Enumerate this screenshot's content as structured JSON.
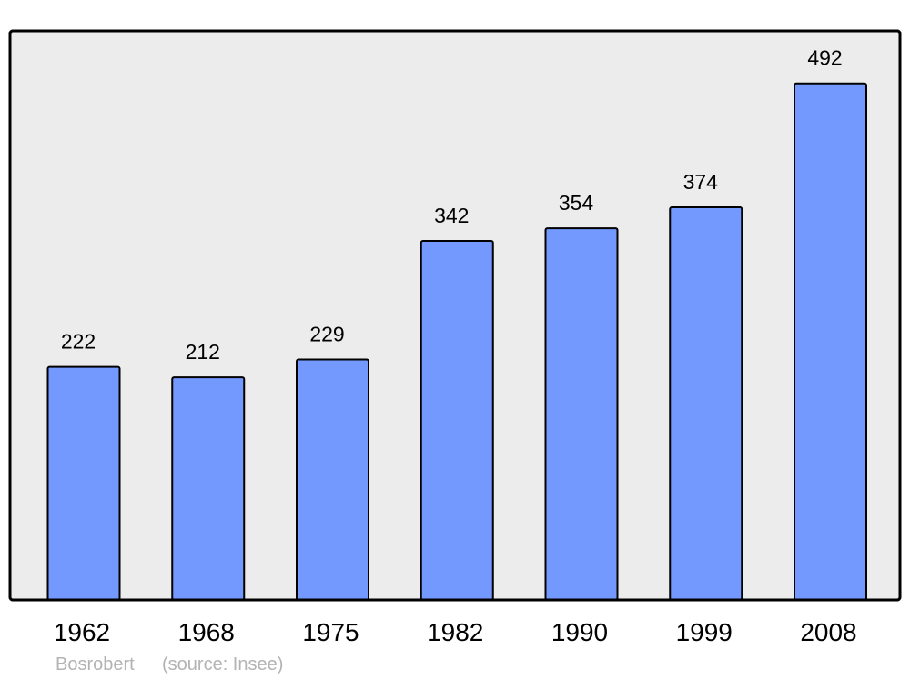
{
  "chart_data": {
    "type": "bar",
    "categories": [
      "1962",
      "1968",
      "1975",
      "1982",
      "1990",
      "1999",
      "2008"
    ],
    "values": [
      222,
      212,
      229,
      342,
      354,
      374,
      492
    ],
    "title": "",
    "xlabel": "",
    "ylabel": "",
    "ylim": [
      0,
      542
    ],
    "grid": false,
    "data_labels": true,
    "colors": {
      "bar": "#7399ff",
      "plot_background": "#ececec",
      "border": "#000000"
    }
  },
  "credit": {
    "author": "Bosrobert",
    "source": "(source: Insee)"
  }
}
